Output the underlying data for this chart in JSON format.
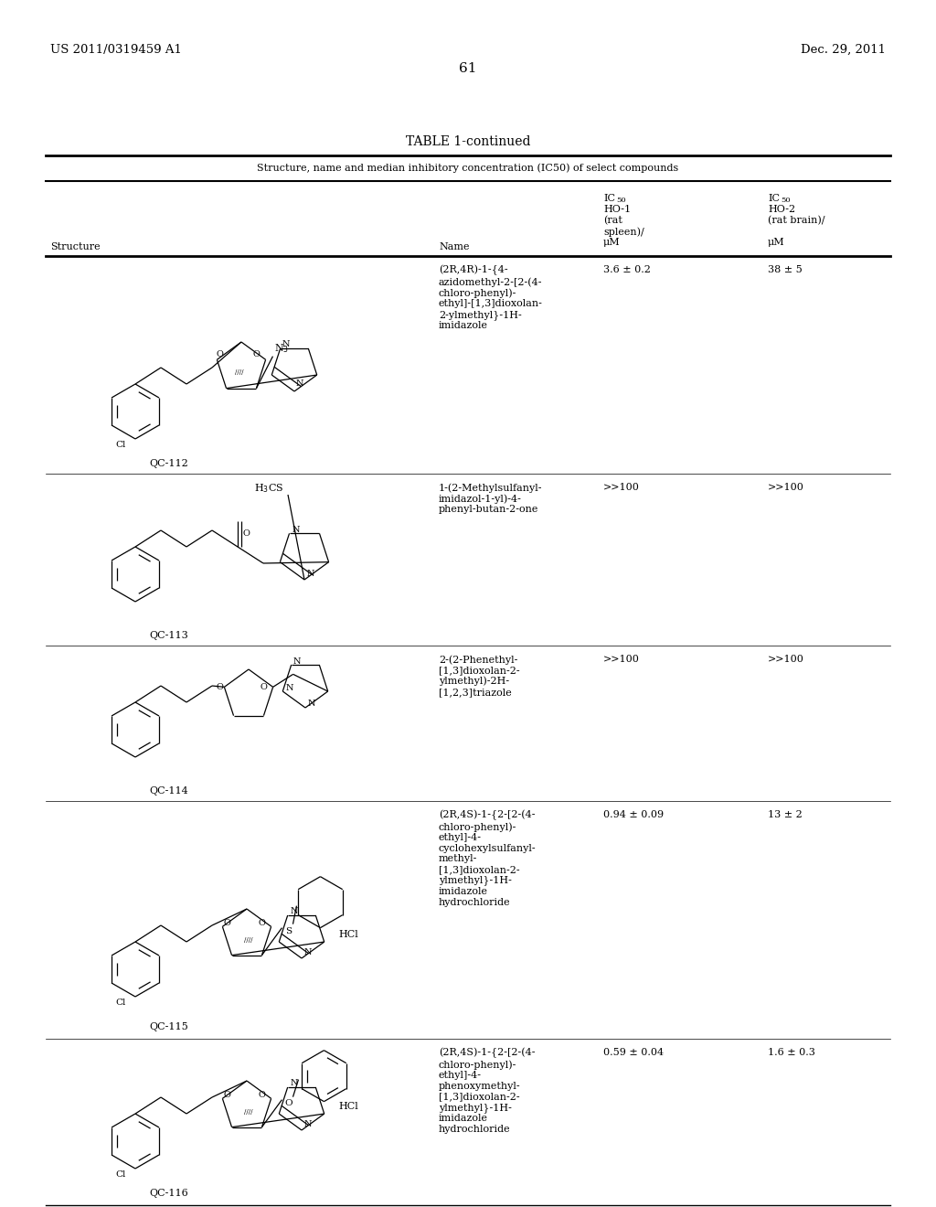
{
  "page_number": "61",
  "patent_number": "US 2011/0319459 A1",
  "patent_date": "Dec. 29, 2011",
  "table_title": "TABLE 1-continued",
  "table_subtitle": "Structure, name and median inhibitory concentration (IC50) of select compounds",
  "compounds": [
    {
      "id": "QC-112",
      "name": "(2R,4R)-1-{4-\nazidomethyl-2-[2-(4-\nchloro-phenyl)-\nethyl]-[1,3]dioxolan-\n2-ylmethyl}-1H-\nimidazole",
      "ic50_ho1": "3.6 ± 0.2",
      "ic50_ho2": "38 ± 5"
    },
    {
      "id": "QC-113",
      "name": "1-(2-Methylsulfanyl-\nimidazol-1-yl)-4-\nphenyl-butan-2-one",
      "ic50_ho1": ">>100",
      "ic50_ho2": ">>100"
    },
    {
      "id": "QC-114",
      "name": "2-(2-Phenethyl-\n[1,3]dioxolan-2-\nylmethyl)-2H-\n[1,2,3]triazole",
      "ic50_ho1": ">>100",
      "ic50_ho2": ">>100"
    },
    {
      "id": "QC-115",
      "name": "(2R,4S)-1-{2-[2-(4-\nchloro-phenyl)-\nethyl]-4-\ncyclohexylsulfanyl-\nmethyl-\n[1,3]dioxolan-2-\nylmethyl}-1H-\nimidazole\nhydrochloride",
      "ic50_ho1": "0.94 ± 0.09",
      "ic50_ho2": "13 ± 2"
    },
    {
      "id": "QC-116",
      "name": "(2R,4S)-1-{2-[2-(4-\nchloro-phenyl)-\nethyl]-4-\nphenoxymethyl-\n[1,3]dioxolan-2-\nylmethyl}-1H-\nimidazole\nhydrochloride",
      "ic50_ho1": "0.59 ± 0.04",
      "ic50_ho2": "1.6 ± 0.3"
    }
  ],
  "background_color": "#ffffff",
  "text_color": "#000000"
}
